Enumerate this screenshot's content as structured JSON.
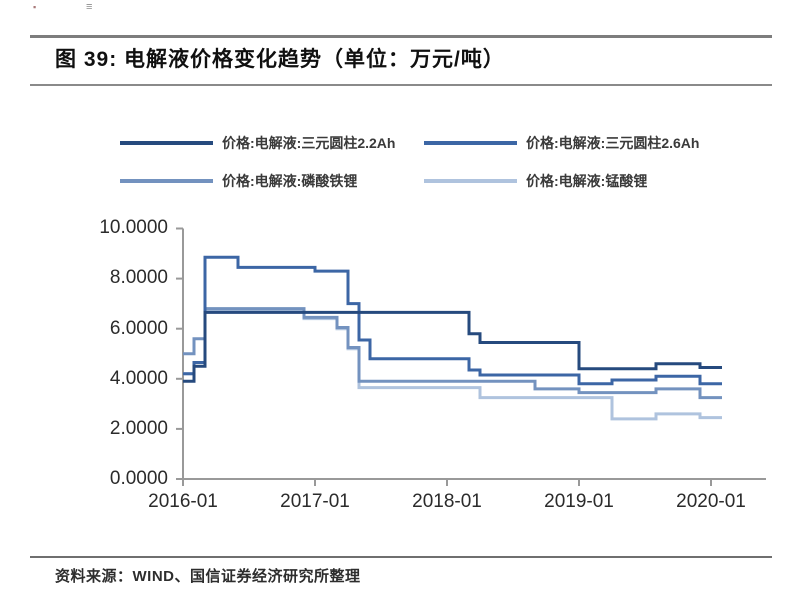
{
  "page": {
    "title": "图 39: 电解液价格变化趋势（单位：万元/吨）",
    "source": "资料来源：WIND、国信证券经济研究所整理",
    "artifact_marks": {
      "dot": "▪",
      "lines": "≡"
    }
  },
  "chart_data": {
    "type": "line",
    "subtype": "step-after",
    "title": "电解液价格变化趋势",
    "unit": "万元/吨",
    "grid": false,
    "legend_position": "top",
    "x_first_month": "2016-01",
    "x_last_month": "2020-02",
    "x_tick_labels": [
      "2016-01",
      "2017-01",
      "2018-01",
      "2019-01",
      "2020-01"
    ],
    "y_tick_labels": [
      "0.0000",
      "2.0000",
      "4.0000",
      "6.0000",
      "8.0000",
      "10.0000"
    ],
    "ylim": [
      0,
      10
    ],
    "axis_color": "#999999",
    "series": [
      {
        "name": "价格:电解液:三元圆柱2.2Ah",
        "color": "#264a7e",
        "values": [
          3.9,
          4.5,
          6.65,
          6.65,
          6.65,
          6.65,
          6.65,
          6.65,
          6.65,
          6.65,
          6.65,
          6.65,
          6.65,
          6.65,
          6.65,
          6.65,
          6.65,
          6.65,
          6.65,
          6.65,
          6.65,
          6.65,
          6.65,
          6.65,
          6.65,
          6.65,
          5.8,
          5.45,
          5.45,
          5.45,
          5.45,
          5.45,
          5.45,
          5.45,
          5.45,
          5.45,
          4.4,
          4.4,
          4.4,
          4.4,
          4.4,
          4.4,
          4.4,
          4.6,
          4.6,
          4.6,
          4.6,
          4.45,
          4.45,
          4.45
        ]
      },
      {
        "name": "价格:电解液:三元圆柱2.6Ah",
        "color": "#3c66a5",
        "values": [
          4.2,
          4.65,
          8.85,
          8.85,
          8.85,
          8.45,
          8.45,
          8.45,
          8.45,
          8.45,
          8.45,
          8.45,
          8.3,
          8.3,
          8.3,
          7.0,
          5.55,
          4.8,
          4.8,
          4.8,
          4.8,
          4.8,
          4.8,
          4.8,
          4.8,
          4.8,
          4.35,
          4.15,
          4.15,
          4.15,
          4.15,
          4.15,
          4.15,
          4.15,
          4.15,
          4.15,
          3.8,
          3.8,
          3.8,
          3.95,
          3.95,
          3.95,
          3.95,
          4.1,
          4.1,
          4.1,
          4.1,
          3.8,
          3.8,
          3.8
        ]
      },
      {
        "name": "价格:电解液:磷酸铁锂",
        "color": "#7392bf",
        "values": [
          5.0,
          5.6,
          6.8,
          6.8,
          6.8,
          6.8,
          6.8,
          6.8,
          6.8,
          6.8,
          6.8,
          6.45,
          6.45,
          6.45,
          6.05,
          5.25,
          3.9,
          3.9,
          3.9,
          3.9,
          3.9,
          3.9,
          3.9,
          3.9,
          3.9,
          3.9,
          3.9,
          3.9,
          3.9,
          3.9,
          3.9,
          3.9,
          3.6,
          3.6,
          3.6,
          3.6,
          3.45,
          3.45,
          3.45,
          3.45,
          3.45,
          3.45,
          3.45,
          3.6,
          3.6,
          3.6,
          3.6,
          3.25,
          3.25,
          3.25
        ]
      },
      {
        "name": "价格:电解液:锰酸锂",
        "color": "#afc3de",
        "values": [
          4.2,
          4.65,
          6.75,
          6.75,
          6.75,
          6.75,
          6.75,
          6.75,
          6.75,
          6.75,
          6.75,
          6.4,
          6.4,
          6.4,
          6.0,
          5.2,
          3.65,
          3.65,
          3.65,
          3.65,
          3.65,
          3.65,
          3.65,
          3.65,
          3.65,
          3.65,
          3.65,
          3.25,
          3.25,
          3.25,
          3.25,
          3.25,
          3.25,
          3.25,
          3.25,
          3.25,
          3.25,
          3.25,
          3.25,
          2.4,
          2.4,
          2.4,
          2.4,
          2.6,
          2.6,
          2.6,
          2.6,
          2.45,
          2.45,
          2.45
        ]
      }
    ]
  }
}
